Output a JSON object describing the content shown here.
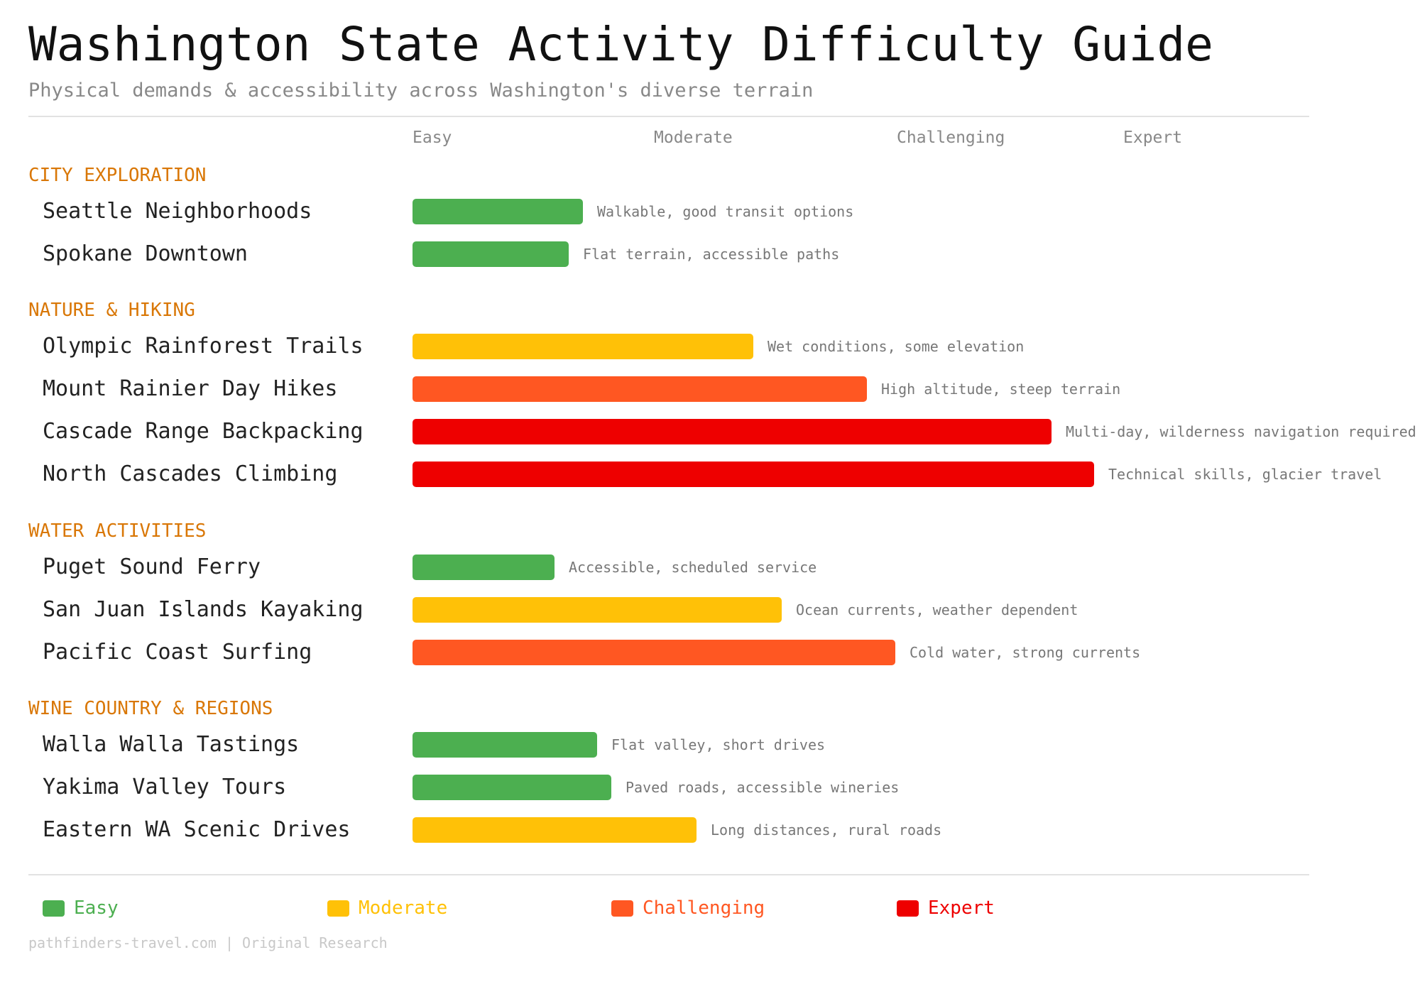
{
  "chart_data": {
    "type": "bar",
    "orientation": "horizontal",
    "title": "Washington State Activity Difficulty Guide",
    "subtitle": "Physical demands & accessibility across Washington's diverse terrain",
    "scale_labels": [
      "Easy",
      "Moderate",
      "Challenging",
      "Expert"
    ],
    "xlim": [
      0,
      100
    ],
    "grid": false,
    "legend_placement": "bottom",
    "colors": {
      "Easy": "#4caf50",
      "Moderate": "#ffc107",
      "Challenging": "#ff5722",
      "Expert": "#ee0000"
    },
    "category_color": "#d97706",
    "groups": [
      {
        "name": "CITY EXPLORATION",
        "items": [
          {
            "label": "Seattle Neighborhoods",
            "value": 24,
            "level": "Easy",
            "note": "Walkable, good transit options"
          },
          {
            "label": "Spokane Downtown",
            "value": 22,
            "level": "Easy",
            "note": "Flat terrain, accessible paths"
          }
        ]
      },
      {
        "name": "NATURE & HIKING",
        "items": [
          {
            "label": "Olympic Rainforest Trails",
            "value": 48,
            "level": "Moderate",
            "note": "Wet conditions, some elevation"
          },
          {
            "label": "Mount Rainier Day Hikes",
            "value": 64,
            "level": "Challenging",
            "note": "High altitude, steep terrain"
          },
          {
            "label": "Cascade Range Backpacking",
            "value": 90,
            "level": "Expert",
            "note": "Multi-day, wilderness navigation required"
          },
          {
            "label": "North Cascades Climbing",
            "value": 96,
            "level": "Expert",
            "note": "Technical skills, glacier travel"
          }
        ]
      },
      {
        "name": "WATER ACTIVITIES",
        "items": [
          {
            "label": "Puget Sound Ferry",
            "value": 20,
            "level": "Easy",
            "note": "Accessible, scheduled service"
          },
          {
            "label": "San Juan Islands Kayaking",
            "value": 52,
            "level": "Moderate",
            "note": "Ocean currents, weather dependent"
          },
          {
            "label": "Pacific Coast Surfing",
            "value": 68,
            "level": "Challenging",
            "note": "Cold water, strong currents"
          }
        ]
      },
      {
        "name": "WINE COUNTRY & REGIONS",
        "items": [
          {
            "label": "Walla Walla Tastings",
            "value": 26,
            "level": "Easy",
            "note": "Flat valley, short drives"
          },
          {
            "label": "Yakima Valley Tours",
            "value": 28,
            "level": "Easy",
            "note": "Paved roads, accessible wineries"
          },
          {
            "label": "Eastern WA Scenic Drives",
            "value": 40,
            "level": "Moderate",
            "note": "Long distances, rural roads"
          }
        ]
      }
    ],
    "legend": [
      "Easy",
      "Moderate",
      "Challenging",
      "Expert"
    ]
  },
  "footer": "pathfinders-travel.com | Original Research"
}
